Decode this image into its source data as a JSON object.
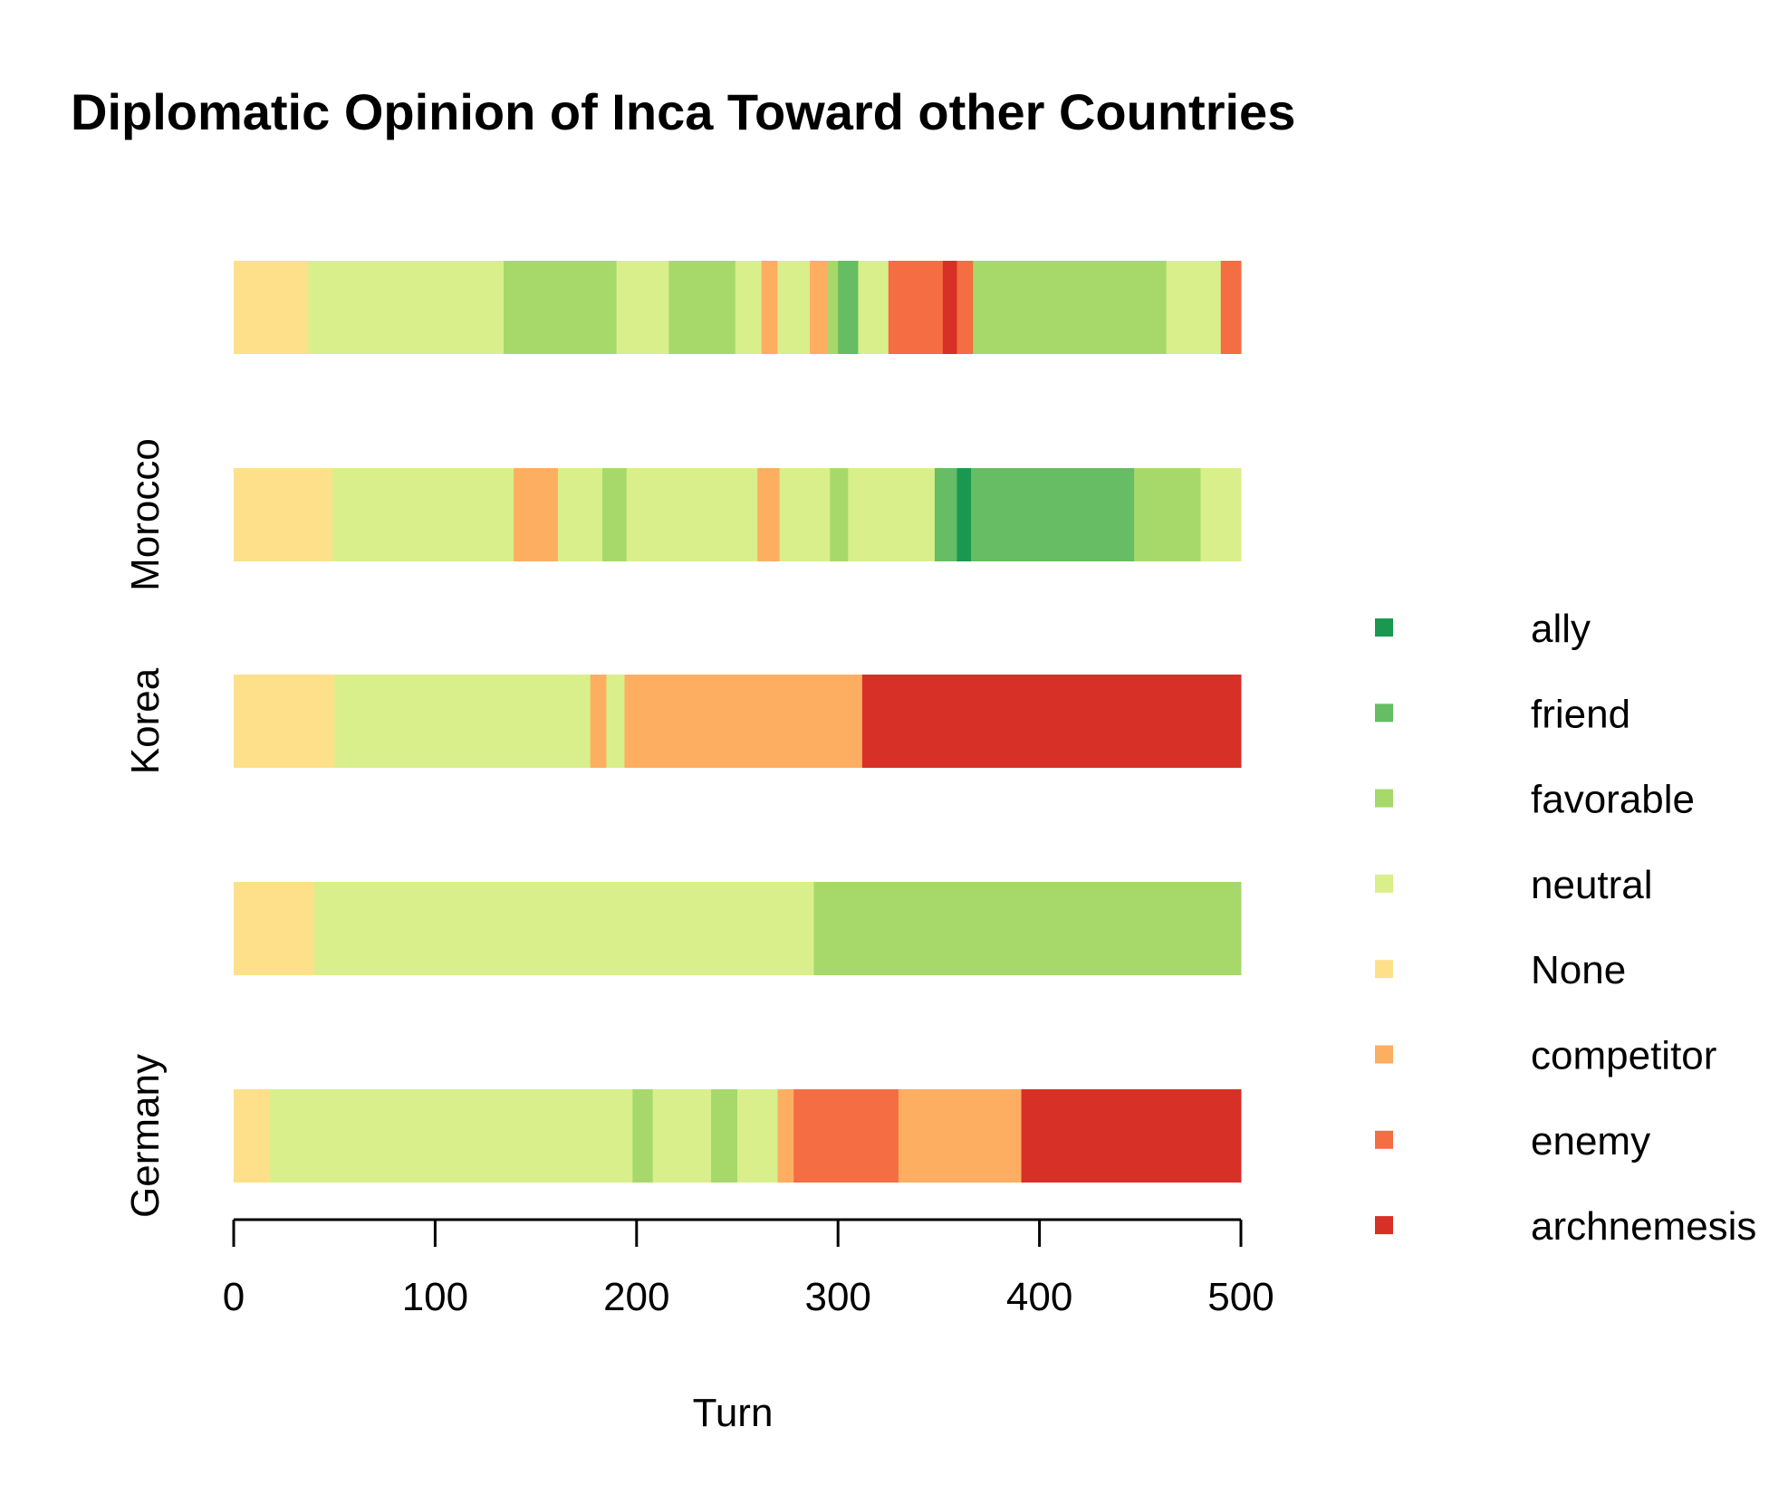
{
  "chart_data": {
    "type": "bar",
    "orientation": "horizontal",
    "stacked": true,
    "title": "Diplomatic Opinion of Inca Toward other Countries",
    "xlabel": "Turn",
    "ylabel": "",
    "xlim": [
      0,
      500
    ],
    "x_ticks": [
      0,
      100,
      200,
      300,
      400,
      500
    ],
    "x_tick_labels": [
      "0",
      "100",
      "200",
      "300",
      "400",
      "500"
    ],
    "row_labels": [
      "",
      "Morocco",
      "Korea",
      "",
      "Germany"
    ],
    "legend": {
      "placement": "right",
      "entries": [
        {
          "label": "ally",
          "color": "#1a9850"
        },
        {
          "label": "friend",
          "color": "#66bd63"
        },
        {
          "label": "favorable",
          "color": "#a6d96a"
        },
        {
          "label": "neutral",
          "color": "#d9ef8b"
        },
        {
          "label": "None",
          "color": "#fee08b"
        },
        {
          "label": "competitor",
          "color": "#fdae61"
        },
        {
          "label": "enemy",
          "color": "#f46d43"
        },
        {
          "label": "archnemesis",
          "color": "#d73027"
        }
      ]
    },
    "rows": [
      {
        "segments": [
          {
            "start": 0,
            "end": 37,
            "state": "None"
          },
          {
            "start": 37,
            "end": 134,
            "state": "neutral"
          },
          {
            "start": 134,
            "end": 190,
            "state": "favorable"
          },
          {
            "start": 190,
            "end": 216,
            "state": "neutral"
          },
          {
            "start": 216,
            "end": 249,
            "state": "favorable"
          },
          {
            "start": 249,
            "end": 262,
            "state": "neutral"
          },
          {
            "start": 262,
            "end": 270,
            "state": "competitor"
          },
          {
            "start": 270,
            "end": 286,
            "state": "neutral"
          },
          {
            "start": 286,
            "end": 295,
            "state": "competitor"
          },
          {
            "start": 295,
            "end": 300,
            "state": "favorable"
          },
          {
            "start": 300,
            "end": 310,
            "state": "friend"
          },
          {
            "start": 310,
            "end": 325,
            "state": "neutral"
          },
          {
            "start": 325,
            "end": 352,
            "state": "enemy"
          },
          {
            "start": 352,
            "end": 359,
            "state": "archnemesis"
          },
          {
            "start": 359,
            "end": 367,
            "state": "enemy"
          },
          {
            "start": 367,
            "end": 463,
            "state": "favorable"
          },
          {
            "start": 463,
            "end": 490,
            "state": "neutral"
          },
          {
            "start": 490,
            "end": 500,
            "state": "enemy"
          }
        ]
      },
      {
        "segments": [
          {
            "start": 0,
            "end": 49,
            "state": "None"
          },
          {
            "start": 49,
            "end": 139,
            "state": "neutral"
          },
          {
            "start": 139,
            "end": 161,
            "state": "competitor"
          },
          {
            "start": 161,
            "end": 183,
            "state": "neutral"
          },
          {
            "start": 183,
            "end": 195,
            "state": "favorable"
          },
          {
            "start": 195,
            "end": 260,
            "state": "neutral"
          },
          {
            "start": 260,
            "end": 271,
            "state": "competitor"
          },
          {
            "start": 271,
            "end": 296,
            "state": "neutral"
          },
          {
            "start": 296,
            "end": 305,
            "state": "favorable"
          },
          {
            "start": 305,
            "end": 348,
            "state": "neutral"
          },
          {
            "start": 348,
            "end": 359,
            "state": "friend"
          },
          {
            "start": 359,
            "end": 366,
            "state": "ally"
          },
          {
            "start": 366,
            "end": 447,
            "state": "friend"
          },
          {
            "start": 447,
            "end": 480,
            "state": "favorable"
          },
          {
            "start": 480,
            "end": 500,
            "state": "neutral"
          }
        ]
      },
      {
        "segments": [
          {
            "start": 0,
            "end": 50,
            "state": "None"
          },
          {
            "start": 50,
            "end": 177,
            "state": "neutral"
          },
          {
            "start": 177,
            "end": 185,
            "state": "competitor"
          },
          {
            "start": 185,
            "end": 194,
            "state": "neutral"
          },
          {
            "start": 194,
            "end": 312,
            "state": "competitor"
          },
          {
            "start": 312,
            "end": 500,
            "state": "archnemesis"
          }
        ]
      },
      {
        "segments": [
          {
            "start": 0,
            "end": 40,
            "state": "None"
          },
          {
            "start": 40,
            "end": 288,
            "state": "neutral"
          },
          {
            "start": 288,
            "end": 500,
            "state": "favorable"
          }
        ]
      },
      {
        "segments": [
          {
            "start": 0,
            "end": 18,
            "state": "None"
          },
          {
            "start": 18,
            "end": 198,
            "state": "neutral"
          },
          {
            "start": 198,
            "end": 208,
            "state": "favorable"
          },
          {
            "start": 208,
            "end": 237,
            "state": "neutral"
          },
          {
            "start": 237,
            "end": 250,
            "state": "favorable"
          },
          {
            "start": 250,
            "end": 270,
            "state": "neutral"
          },
          {
            "start": 270,
            "end": 278,
            "state": "competitor"
          },
          {
            "start": 278,
            "end": 330,
            "state": "enemy"
          },
          {
            "start": 330,
            "end": 391,
            "state": "competitor"
          },
          {
            "start": 391,
            "end": 500,
            "state": "archnemesis"
          }
        ]
      }
    ]
  }
}
